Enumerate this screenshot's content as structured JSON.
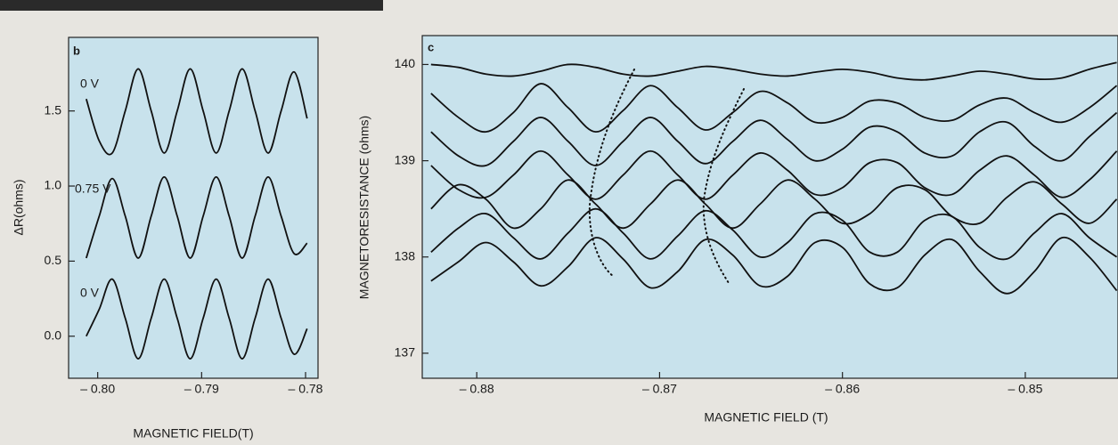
{
  "chart_data": [
    {
      "type": "line",
      "panel_label": "b",
      "x_label": "MAGNETIC FIELD(T)",
      "y_label": "ΔR(ohms)",
      "xlim": [
        -0.8028,
        -0.7788
      ],
      "ylim": [
        -0.28,
        1.99
      ],
      "xticks": [
        {
          "value": -0.8,
          "label": "– 0.80"
        },
        {
          "value": -0.79,
          "label": "– 0.79"
        },
        {
          "value": -0.78,
          "label": "– 0.78"
        }
      ],
      "yticks": [
        1.5,
        {
          "value": 1.0,
          "label": "1.0"
        },
        0.5,
        {
          "value": 0.0,
          "label": "0.0"
        }
      ],
      "x": [
        -0.8011,
        -0.79985,
        -0.7986,
        -0.79735,
        -0.7961,
        -0.79485,
        -0.7936,
        -0.79235,
        -0.7911,
        -0.78985,
        -0.7886,
        -0.78735,
        -0.7861,
        -0.78485,
        -0.7836,
        -0.78235,
        -0.7811,
        -0.77985
      ],
      "series": [
        {
          "name": "0 V",
          "color": "#111111",
          "values": [
            1.58,
            1.3,
            1.22,
            1.5,
            1.78,
            1.5,
            1.22,
            1.5,
            1.78,
            1.5,
            1.22,
            1.5,
            1.78,
            1.5,
            1.22,
            1.5,
            1.76,
            1.45
          ]
        },
        {
          "name": "0.75 V",
          "color": "#111111",
          "values": [
            0.52,
            0.8,
            1.05,
            0.8,
            0.52,
            0.8,
            1.06,
            0.8,
            0.52,
            0.8,
            1.06,
            0.8,
            0.52,
            0.8,
            1.06,
            0.8,
            0.55,
            0.62
          ]
        },
        {
          "name": "0 V",
          "color": "#111111",
          "values": [
            0.0,
            0.18,
            0.38,
            0.12,
            -0.15,
            0.12,
            0.38,
            0.12,
            -0.15,
            0.12,
            0.38,
            0.12,
            -0.15,
            0.12,
            0.38,
            0.12,
            -0.12,
            0.05
          ]
        }
      ]
    },
    {
      "type": "line",
      "panel_label": "c",
      "x_label": "MAGNETIC FIELD (T)",
      "y_label": "MAGNETORESISTANCE (ohms)",
      "xlim": [
        -0.88298,
        -0.84493
      ],
      "ylim": [
        136.74,
        140.3
      ],
      "xticks": [
        {
          "value": -0.88,
          "label": "– 0.88"
        },
        {
          "value": -0.87,
          "label": "– 0.87"
        },
        {
          "value": -0.86,
          "label": "– 0.86"
        },
        {
          "value": -0.85,
          "label": "– 0.85"
        }
      ],
      "yticks": [
        140,
        139,
        138,
        137
      ],
      "x": [
        -0.8825,
        -0.881,
        -0.8795,
        -0.878,
        -0.8765,
        -0.875,
        -0.8735,
        -0.872,
        -0.8705,
        -0.869,
        -0.8675,
        -0.866,
        -0.8645,
        -0.863,
        -0.8615,
        -0.86,
        -0.8585,
        -0.857,
        -0.8555,
        -0.854,
        -0.8525,
        -0.851,
        -0.8495,
        -0.848,
        -0.8465,
        -0.845
      ],
      "series": [
        {
          "color": "#111111",
          "values": [
            140.0,
            139.97,
            139.9,
            139.88,
            139.93,
            140.0,
            139.97,
            139.9,
            139.88,
            139.93,
            139.98,
            139.95,
            139.9,
            139.88,
            139.92,
            139.95,
            139.92,
            139.86,
            139.84,
            139.88,
            139.93,
            139.9,
            139.85,
            139.86,
            139.95,
            140.02
          ]
        },
        {
          "color": "#111111",
          "values": [
            139.7,
            139.45,
            139.3,
            139.5,
            139.8,
            139.55,
            139.3,
            139.52,
            139.78,
            139.55,
            139.32,
            139.5,
            139.72,
            139.6,
            139.4,
            139.45,
            139.62,
            139.6,
            139.45,
            139.42,
            139.58,
            139.65,
            139.5,
            139.4,
            139.55,
            139.78
          ]
        },
        {
          "color": "#111111",
          "values": [
            139.3,
            139.05,
            138.95,
            139.2,
            139.45,
            139.2,
            138.95,
            139.2,
            139.45,
            139.2,
            138.97,
            139.2,
            139.42,
            139.22,
            139.0,
            139.12,
            139.35,
            139.3,
            139.08,
            139.05,
            139.3,
            139.4,
            139.15,
            139.0,
            139.25,
            139.5
          ]
        },
        {
          "color": "#111111",
          "values": [
            138.95,
            138.7,
            138.62,
            138.85,
            139.1,
            138.85,
            138.6,
            138.85,
            139.1,
            138.85,
            138.6,
            138.85,
            139.08,
            138.9,
            138.65,
            138.72,
            138.98,
            138.98,
            138.72,
            138.65,
            138.9,
            139.05,
            138.85,
            138.62,
            138.8,
            139.1
          ]
        },
        {
          "color": "#111111",
          "values": [
            138.5,
            138.75,
            138.6,
            138.3,
            138.5,
            138.8,
            138.55,
            138.3,
            138.55,
            138.8,
            138.55,
            138.3,
            138.55,
            138.8,
            138.6,
            138.35,
            138.45,
            138.72,
            138.7,
            138.42,
            138.35,
            138.62,
            138.78,
            138.55,
            138.35,
            138.6
          ]
        },
        {
          "color": "#111111",
          "values": [
            138.05,
            138.3,
            138.45,
            138.2,
            137.98,
            138.25,
            138.5,
            138.25,
            137.98,
            138.22,
            138.48,
            138.28,
            138.0,
            138.15,
            138.45,
            138.38,
            138.05,
            138.05,
            138.38,
            138.42,
            138.1,
            137.98,
            138.25,
            138.45,
            138.2,
            138.0
          ]
        },
        {
          "color": "#111111",
          "values": [
            137.75,
            137.95,
            138.15,
            137.95,
            137.7,
            137.9,
            138.2,
            137.98,
            137.68,
            137.85,
            138.18,
            138.02,
            137.7,
            137.8,
            138.15,
            138.1,
            137.72,
            137.68,
            138.02,
            138.18,
            137.85,
            137.62,
            137.85,
            138.2,
            138.0,
            137.65
          ]
        }
      ]
    }
  ]
}
